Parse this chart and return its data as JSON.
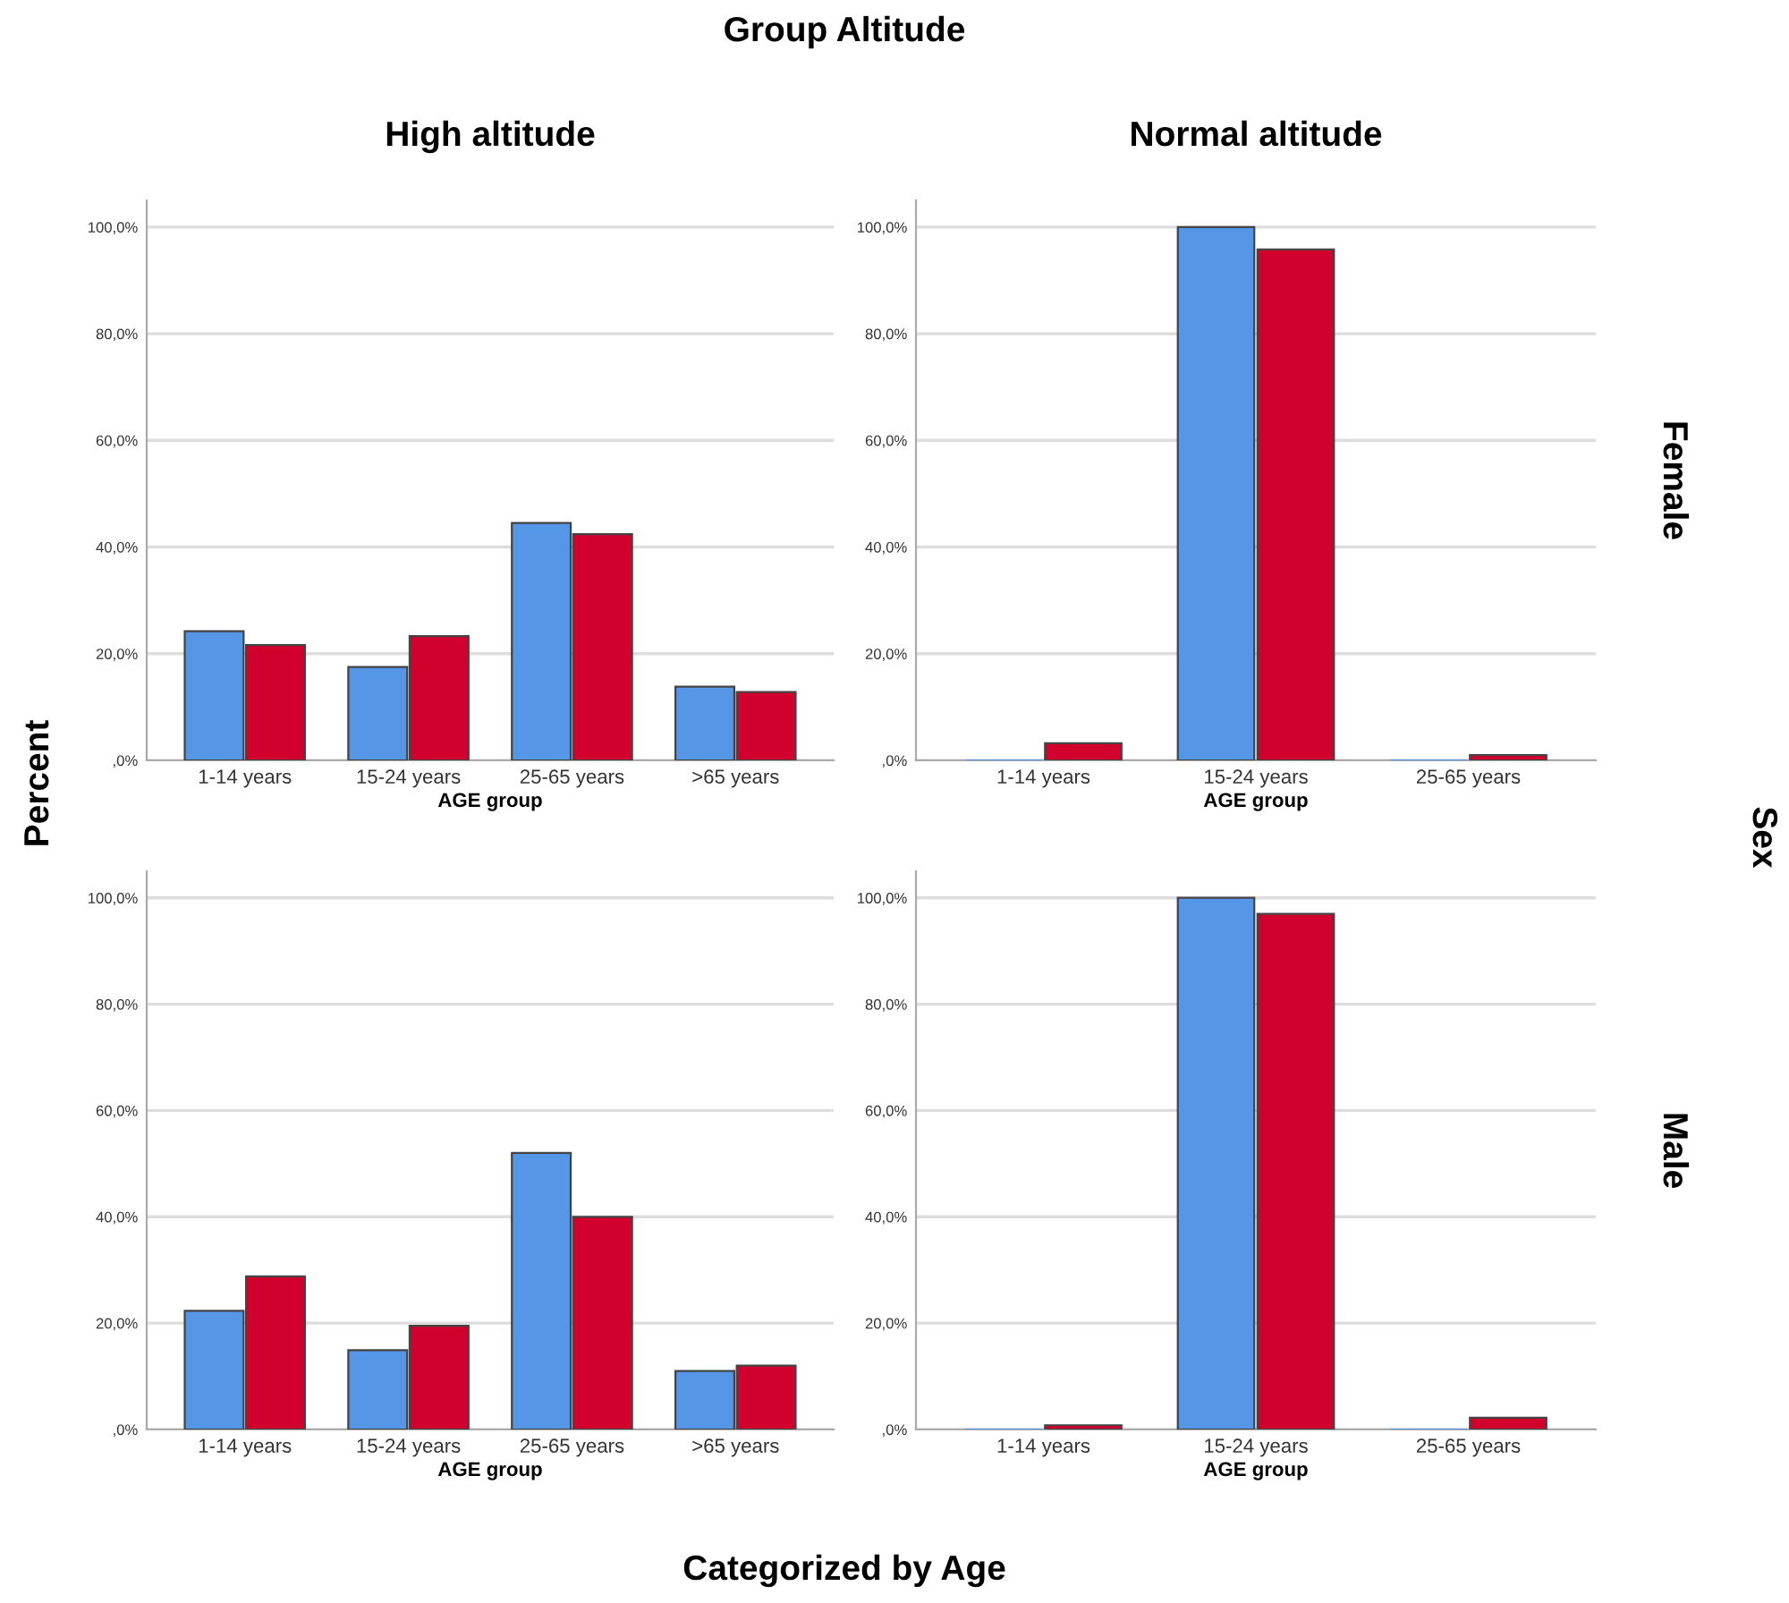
{
  "chart_data": [
    {
      "type": "bar",
      "title": "High altitude",
      "xlabel": "AGE group",
      "categories": [
        "1-14 years",
        "15-24 years",
        "25-65 years",
        ">65 years"
      ],
      "series": [
        {
          "color": "#5596e6",
          "values": [
            24.2,
            17.5,
            44.5,
            13.8
          ]
        },
        {
          "color": "#d2002d",
          "values": [
            21.6,
            23.3,
            42.4,
            12.8
          ]
        }
      ],
      "ylim": [
        0,
        105
      ],
      "yticks": [
        {
          "value": 0,
          "label": ",0%"
        },
        {
          "value": 20,
          "label": "20,0%"
        },
        {
          "value": 40,
          "label": "40,0%"
        },
        {
          "value": 60,
          "label": "60,0%"
        },
        {
          "value": 80,
          "label": "80,0%"
        },
        {
          "value": 100,
          "label": "100,0%"
        }
      ],
      "grid": "y",
      "annotations": [
        "Group Altitude",
        "Percent",
        "Sex",
        "Categorized by Age"
      ]
    },
    {
      "type": "bar",
      "title": "Normal altitude",
      "xlabel": "AGE group",
      "categories": [
        "1-14 years",
        "15-24 years",
        "25-65 years"
      ],
      "series": [
        {
          "color": "#5596e6",
          "values": [
            0,
            100,
            0
          ]
        },
        {
          "color": "#d2002d",
          "values": [
            3.2,
            95.8,
            1.0
          ]
        }
      ],
      "ylim": [
        0,
        105
      ],
      "yticks": [
        {
          "value": 0,
          "label": ",0%"
        },
        {
          "value": 20,
          "label": "20,0%"
        },
        {
          "value": 40,
          "label": "40,0%"
        },
        {
          "value": 60,
          "label": "60,0%"
        },
        {
          "value": 80,
          "label": "80,0%"
        },
        {
          "value": 100,
          "label": "100,0%"
        }
      ],
      "grid": "y",
      "annotations": [
        "Female"
      ]
    },
    {
      "type": "bar",
      "xlabel": "AGE group",
      "categories": [
        "1-14 years",
        "15-24 years",
        "25-65 years",
        ">65 years"
      ],
      "series": [
        {
          "color": "#5596e6",
          "values": [
            22.3,
            14.9,
            52.0,
            11.0
          ]
        },
        {
          "color": "#d2002d",
          "values": [
            28.8,
            19.5,
            40.0,
            12.0
          ]
        }
      ],
      "ylim": [
        0,
        105
      ],
      "yticks": [
        {
          "value": 0,
          "label": ",0%"
        },
        {
          "value": 20,
          "label": "20,0%"
        },
        {
          "value": 40,
          "label": "40,0%"
        },
        {
          "value": 60,
          "label": "60,0%"
        },
        {
          "value": 80,
          "label": "80,0%"
        },
        {
          "value": 100,
          "label": "100,0%"
        }
      ],
      "grid": "y"
    },
    {
      "type": "bar",
      "xlabel": "AGE group",
      "categories": [
        "1-14 years",
        "15-24 years",
        "25-65 years"
      ],
      "series": [
        {
          "color": "#5596e6",
          "values": [
            0,
            100,
            0
          ]
        },
        {
          "color": "#d2002d",
          "values": [
            0.8,
            97.0,
            2.2
          ]
        }
      ],
      "ylim": [
        0,
        105
      ],
      "yticks": [
        {
          "value": 0,
          "label": ",0%"
        },
        {
          "value": 20,
          "label": "20,0%"
        },
        {
          "value": 40,
          "label": "40,0%"
        },
        {
          "value": 60,
          "label": "60,0%"
        },
        {
          "value": 80,
          "label": "80,0%"
        },
        {
          "value": 100,
          "label": "100,0%"
        }
      ],
      "grid": "y",
      "annotations": [
        "Male"
      ]
    }
  ]
}
